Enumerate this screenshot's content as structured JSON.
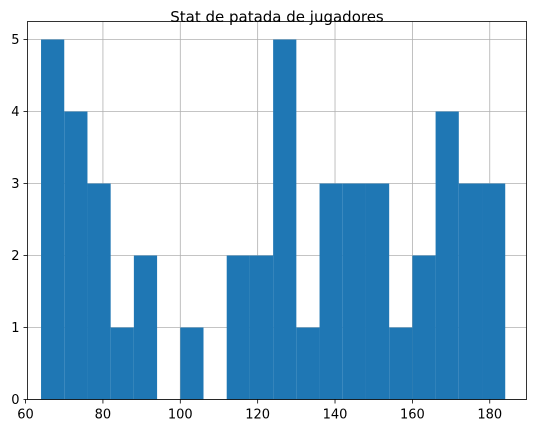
{
  "chart_data": {
    "type": "bar",
    "title": "Stat de patada de jugadores",
    "xlabel": "",
    "ylabel": "",
    "grid": true,
    "bar_color": "#1f77b4",
    "xlim": [
      60.5,
      189.5
    ],
    "ylim": [
      0,
      5.25
    ],
    "xticks": [
      60,
      80,
      100,
      120,
      140,
      160,
      180
    ],
    "yticks": [
      0,
      1,
      2,
      3,
      4,
      5
    ],
    "bin_edges": [
      64,
      70,
      76,
      82,
      88,
      94,
      100,
      106,
      112,
      118,
      124,
      130,
      136,
      142,
      148,
      154,
      160,
      166,
      172,
      178,
      184
    ],
    "values": [
      5,
      4,
      3,
      1,
      2,
      0,
      1,
      0,
      2,
      2,
      5,
      1,
      3,
      3,
      3,
      1,
      2,
      4,
      3,
      3
    ]
  }
}
